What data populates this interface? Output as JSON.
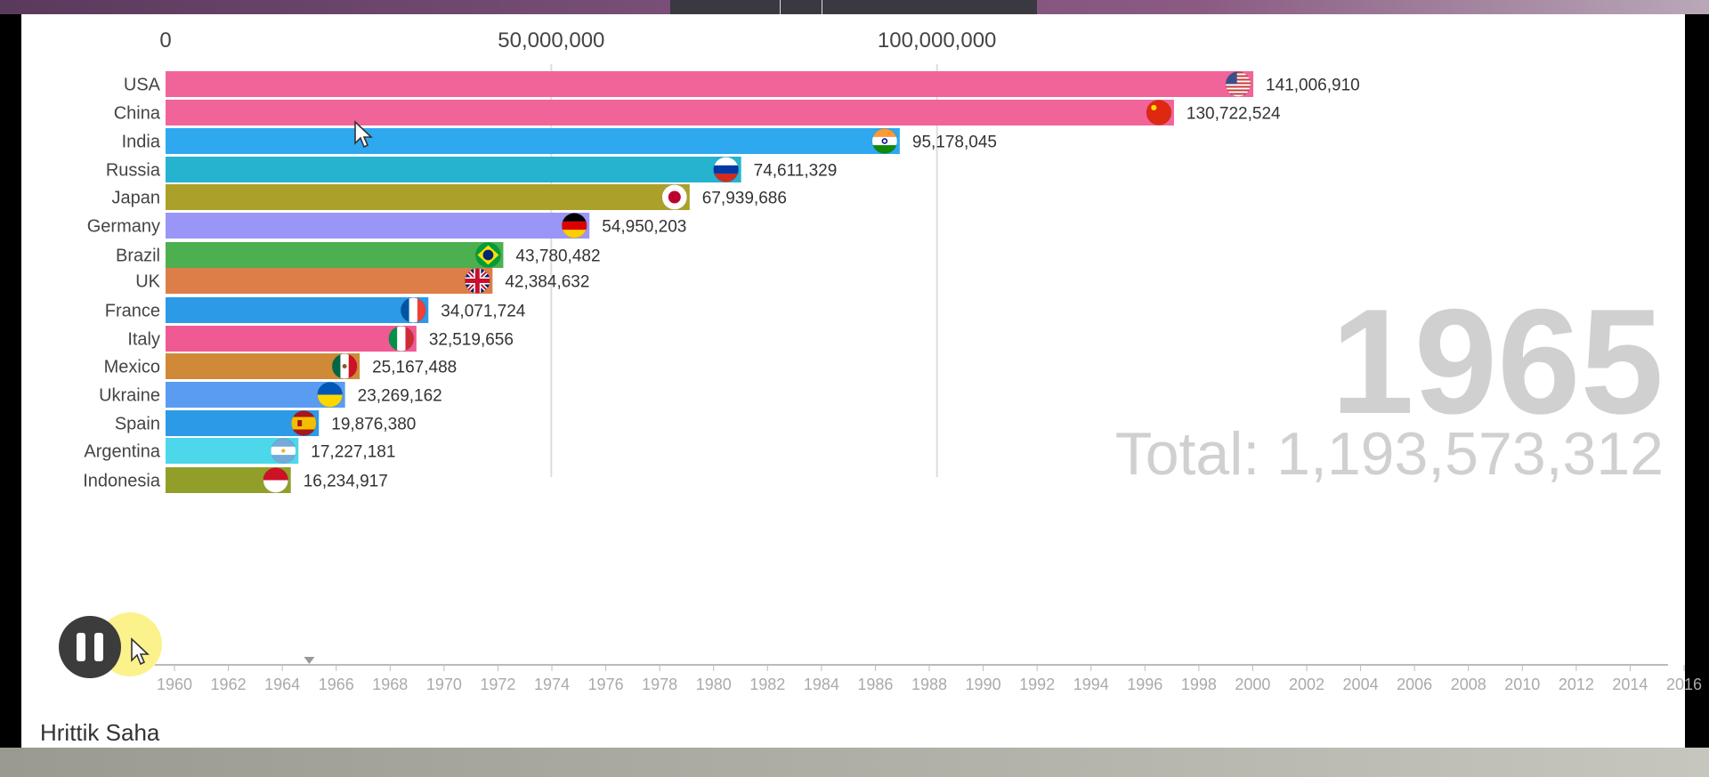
{
  "author": "Hrittik Saha",
  "chart_data": {
    "type": "bar",
    "orientation": "horizontal",
    "year": "1965",
    "total_label": "Total: 1,193,573,312",
    "x_ticks": [
      0,
      50000000,
      100000000
    ],
    "x_tick_labels": [
      "0",
      "50,000,000",
      "100,000,000"
    ],
    "xlim": [
      0,
      160000000
    ],
    "categories": [
      "USA",
      "China",
      "India",
      "Russia",
      "Japan",
      "Germany",
      "Brazil",
      "UK",
      "France",
      "Italy",
      "Mexico",
      "Ukraine",
      "Spain",
      "Argentina",
      "Indonesia"
    ],
    "values": [
      141006910,
      130722524,
      95178045,
      74611329,
      67939686,
      54950203,
      43780482,
      42384632,
      34071724,
      32519656,
      25167488,
      23269162,
      19876380,
      17227181,
      16234917
    ],
    "value_labels": [
      "141,006,910",
      "130,722,524",
      "95,178,045",
      "74,611,329",
      "67,939,686",
      "54,950,203",
      "43,780,482",
      "42,384,632",
      "34,071,724",
      "32,519,656",
      "25,167,488",
      "23,269,162",
      "19,876,380",
      "17,227,181",
      "16,234,917"
    ],
    "colors": [
      "#f0649a",
      "#f0649a",
      "#2ea8ef",
      "#25b3d0",
      "#aba12a",
      "#9a96f7",
      "#4caf50",
      "#dd7e49",
      "#2d9ae8",
      "#ef5a94",
      "#d08a37",
      "#5a9cf2",
      "#2d9ae8",
      "#4cd8ea",
      "#929e2a"
    ],
    "flags": [
      "flag-usa-icon",
      "flag-china-icon",
      "flag-india-icon",
      "flag-russia-icon",
      "flag-japan-icon",
      "flag-germany-icon",
      "flag-brazil-icon",
      "flag-uk-icon",
      "flag-france-icon",
      "flag-italy-icon",
      "flag-mexico-icon",
      "flag-ukraine-icon",
      "flag-spain-icon",
      "flag-argentina-icon",
      "flag-indonesia-icon"
    ],
    "timeline": {
      "labels": [
        "1960",
        "1962",
        "1964",
        "1966",
        "1968",
        "1970",
        "1972",
        "1974",
        "1976",
        "1978",
        "1980",
        "1982",
        "1984",
        "1986",
        "1988",
        "1990",
        "1992",
        "1994",
        "1996",
        "1998",
        "2000",
        "2002",
        "2004",
        "2006",
        "2008",
        "2010",
        "2012",
        "2014",
        "2016"
      ],
      "current": 1965
    }
  }
}
